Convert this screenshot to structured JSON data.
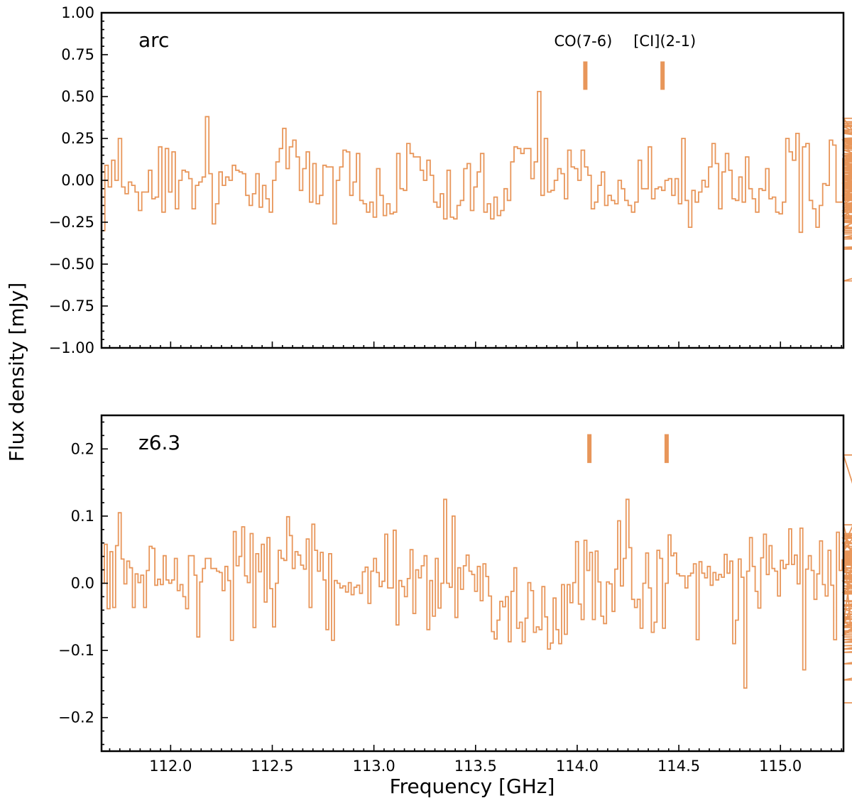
{
  "colors": {
    "spectrum": "#E8965A",
    "marker": "#E8965A",
    "axis": "#000000"
  },
  "xlabel": "Frequency [GHz]",
  "ylabel": "Flux density [mJy]",
  "chart_data": [
    {
      "type": "line",
      "panel_label": "arc",
      "xlim": [
        111.66,
        115.31
      ],
      "ylim": [
        -1.0,
        1.0
      ],
      "x_ticks": [
        112.0,
        112.5,
        113.0,
        113.5,
        114.0,
        114.5,
        115.0
      ],
      "x_tick_labels": [
        "112.0",
        "112.5",
        "113.0",
        "113.5",
        "114.0",
        "114.5",
        "115.0"
      ],
      "x_tick_labels_shown": false,
      "y_ticks": [
        -1.0,
        -0.75,
        -0.5,
        -0.25,
        0.0,
        0.25,
        0.5,
        0.75,
        1.0
      ],
      "y_tick_labels": [
        "−1.00",
        "−0.75",
        "−0.50",
        "−0.25",
        "0.00",
        "0.25",
        "0.50",
        "0.75",
        "1.00"
      ],
      "line_markers": [
        {
          "label": "CO(7-6)",
          "frequency": 114.04,
          "y_range": [
            0.54,
            0.71
          ]
        },
        {
          "label": "[CI](2-1)",
          "frequency": 114.42,
          "y_range": [
            0.54,
            0.71
          ]
        }
      ],
      "series": [
        {
          "style": "step",
          "x_start": 111.66,
          "x_step": 0.0165,
          "values": [
            -0.3,
            0.09,
            -0.04,
            0.12,
            0.0,
            0.25,
            -0.04,
            -0.08,
            -0.01,
            -0.03,
            -0.07,
            -0.18,
            -0.07,
            -0.07,
            0.06,
            -0.11,
            -0.1,
            0.2,
            -0.19,
            0.19,
            -0.07,
            0.17,
            -0.17,
            0.0,
            0.06,
            0.05,
            0.01,
            -0.17,
            -0.03,
            -0.01,
            0.02,
            0.38,
            0.04,
            -0.26,
            -0.14,
            0.05,
            -0.03,
            0.02,
            0.0,
            0.09,
            0.06,
            0.05,
            0.04,
            -0.09,
            -0.15,
            -0.08,
            0.04,
            -0.16,
            -0.03,
            -0.11,
            -0.19,
            0.0,
            0.11,
            0.19,
            0.31,
            0.07,
            0.2,
            0.24,
            0.14,
            -0.06,
            0.07,
            0.17,
            -0.13,
            0.1,
            -0.14,
            -0.09,
            0.09,
            0.08,
            0.08,
            -0.26,
            0.0,
            0.08,
            0.18,
            0.17,
            -0.09,
            -0.01,
            0.16,
            -0.12,
            -0.14,
            -0.19,
            -0.13,
            -0.22,
            0.07,
            -0.09,
            -0.21,
            -0.14,
            -0.2,
            -0.19,
            0.16,
            -0.05,
            -0.06,
            0.22,
            0.16,
            0.14,
            0.14,
            0.06,
            0.0,
            0.12,
            0.03,
            -0.13,
            -0.16,
            -0.08,
            -0.23,
            0.06,
            -0.22,
            -0.23,
            -0.15,
            -0.12,
            0.07,
            0.1,
            -0.18,
            -0.04,
            0.05,
            0.16,
            -0.19,
            -0.14,
            -0.23,
            -0.1,
            -0.21,
            -0.18,
            -0.05,
            -0.12,
            0.11,
            0.2,
            0.19,
            0.16,
            0.19,
            0.19,
            0.01,
            0.11,
            0.53,
            -0.09,
            0.25,
            -0.07,
            -0.06,
            0.0,
            0.07,
            0.04,
            -0.11,
            0.18,
            0.08,
            0.07,
            0.0,
            0.18,
            0.08,
            0.03,
            -0.17,
            -0.13,
            -0.03,
            0.05,
            -0.15,
            -0.09,
            -0.12,
            -0.14,
            0.0,
            -0.05,
            -0.12,
            -0.15,
            -0.19,
            -0.13,
            0.12,
            -0.05,
            -0.05,
            0.2,
            -0.11,
            -0.05,
            -0.04,
            -0.06,
            0.0,
            0.01,
            -0.09,
            0.01,
            -0.14,
            0.25,
            -0.12,
            -0.28,
            -0.06,
            -0.13,
            -0.07,
            0.0,
            -0.04,
            0.08,
            0.22,
            0.1,
            -0.17,
            0.05,
            0.16,
            0.06,
            -0.11,
            -0.12,
            0.02,
            -0.13,
            0.14,
            -0.05,
            -0.11,
            -0.19,
            -0.05,
            -0.06,
            0.07,
            -0.11,
            -0.1,
            -0.19,
            -0.2,
            -0.13,
            0.25,
            0.17,
            0.12,
            0.28,
            -0.31,
            0.2,
            0.22,
            -0.12,
            -0.17,
            -0.28,
            -0.15,
            -0.02,
            -0.03,
            0.24,
            0.21,
            -0.13,
            -0.13,
            0.13,
            -0.18,
            -0.16,
            -0.24,
            -0.08,
            0.23,
            0.04,
            -0.11,
            0.13,
            -0.21,
            -0.09,
            0.05,
            -0.02,
            -0.19,
            0.1,
            -0.01,
            0.01,
            -0.08,
            -0.12,
            0.37,
            -0.16,
            -0.21,
            0.02,
            -0.19,
            0.15,
            -0.25,
            -0.25,
            -0.3,
            0.28,
            0.24,
            -0.1,
            -0.02,
            0.08,
            0.01,
            -0.14,
            0.21,
            0.18,
            -0.05,
            0.21,
            -0.02,
            -0.1,
            0.05,
            -0.28,
            0.12,
            0.15,
            -0.16,
            -0.05,
            0.13,
            0.2,
            0.06,
            0.07,
            0.25,
            0.29,
            -0.04,
            0.22,
            0.25,
            0.32,
            -0.18,
            -0.11,
            0.34,
            0.35,
            0.3,
            -0.02,
            0.07,
            -0.04,
            -0.07,
            0.01,
            -0.02,
            -0.15,
            -0.14,
            0.03,
            -0.09,
            -0.14,
            -0.18,
            0.15,
            0.11,
            -0.28,
            -0.34,
            -0.02,
            0.11,
            0.12,
            0.07,
            -0.11,
            -0.15,
            0.01,
            -0.06,
            -0.05,
            -0.11,
            -0.14,
            0.0,
            -0.18,
            0.13,
            0.25,
            -0.28,
            -0.41,
            -0.17,
            -0.12,
            0.15,
            -0.1,
            -0.04,
            0.12,
            -0.1,
            -0.22,
            -0.01,
            -0.25,
            0.29,
            0.25,
            0.12,
            0.33,
            -0.09,
            -0.01,
            -0.23,
            0.12,
            0.12,
            -0.06,
            -0.23,
            0.12,
            0.06,
            -0.06,
            0.02,
            0.28,
            -0.04,
            -0.03,
            0.2,
            -0.02,
            0.21,
            0.23,
            -0.08,
            -0.07,
            0.02,
            0.19,
            0.16,
            -0.06,
            -0.22,
            -0.11,
            -0.6,
            0.13,
            0.1,
            -0.11,
            0.01,
            0.33,
            0.14,
            0.22,
            0.05,
            -0.1,
            -0.25,
            0.09,
            -0.04,
            -0.25,
            -0.16,
            0.14,
            0.24,
            -0.16,
            -0.32,
            -0.28,
            -0.31,
            -0.29,
            -0.19,
            -0.35,
            -0.15,
            -0.41,
            -0.14,
            -0.4,
            -0.23,
            -0.35
          ]
        }
      ]
    },
    {
      "type": "line",
      "panel_label": "z6.3",
      "xlim": [
        111.66,
        115.31
      ],
      "ylim": [
        -0.25,
        0.25
      ],
      "x_ticks": [
        112.0,
        112.5,
        113.0,
        113.5,
        114.0,
        114.5,
        115.0
      ],
      "x_tick_labels": [
        "112.0",
        "112.5",
        "113.0",
        "113.5",
        "114.0",
        "114.5",
        "115.0"
      ],
      "x_tick_labels_shown": true,
      "y_ticks": [
        -0.2,
        -0.1,
        0.0,
        0.1,
        0.2
      ],
      "y_tick_labels": [
        "−0.2",
        "−0.1",
        "0.0",
        "0.1",
        "0.2"
      ],
      "line_markers": [
        {
          "label": "",
          "frequency": 114.06,
          "y_range": [
            0.179,
            0.222
          ]
        },
        {
          "label": "",
          "frequency": 114.44,
          "y_range": [
            0.179,
            0.222
          ]
        }
      ],
      "series": [
        {
          "style": "step",
          "x_start": 111.66,
          "x_step": 0.0138,
          "values": [
            0.0,
            0.058,
            -0.038,
            0.047,
            -0.036,
            0.056,
            0.105,
            0.036,
            -0.001,
            0.033,
            0.023,
            -0.036,
            0.014,
            0.001,
            0.012,
            -0.036,
            0.019,
            0.055,
            0.052,
            -0.003,
            0.006,
            -0.002,
            0.041,
            0.005,
            0.0,
            0.005,
            0.037,
            -0.011,
            -0.002,
            -0.02,
            -0.038,
            0.041,
            0.041,
            0.012,
            -0.08,
            0.002,
            0.022,
            0.037,
            0.037,
            0.022,
            0.022,
            0.018,
            0.016,
            -0.011,
            0.025,
            0.004,
            -0.085,
            0.077,
            0.026,
            0.04,
            0.084,
            0.011,
            0.001,
            0.074,
            -0.066,
            0.044,
            0.017,
            0.058,
            -0.028,
            0.068,
            -0.008,
            -0.065,
            0.0,
            0.049,
            0.037,
            0.034,
            0.099,
            0.071,
            0.022,
            0.047,
            0.042,
            0.027,
            0.021,
            0.066,
            -0.036,
            0.088,
            0.049,
            0.018,
            0.046,
            0.005,
            -0.069,
            0.044,
            -0.085,
            0.004,
            0.0,
            -0.007,
            -0.004,
            -0.013,
            0.001,
            -0.017,
            -0.006,
            -0.003,
            -0.015,
            0.017,
            0.024,
            -0.03,
            0.018,
            0.037,
            0.016,
            -0.005,
            0.003,
            0.073,
            -0.007,
            -0.007,
            0.079,
            -0.062,
            0.004,
            -0.005,
            -0.02,
            0.007,
            0.05,
            -0.045,
            0.02,
            0.008,
            0.026,
            0.041,
            -0.069,
            0.004,
            -0.049,
            0.037,
            -0.037,
            0.0,
            0.125,
            0.0,
            -0.006,
            0.1,
            -0.051,
            0.023,
            -0.009,
            0.026,
            0.042,
            0.018,
            0.013,
            -0.012,
            0.025,
            -0.026,
            0.029,
            0.01,
            -0.019,
            -0.072,
            -0.083,
            -0.055,
            -0.027,
            -0.035,
            -0.02,
            -0.087,
            -0.012,
            0.023,
            -0.067,
            -0.058,
            -0.087,
            -0.052,
            0.001,
            -0.011,
            -0.073,
            -0.065,
            -0.069,
            -0.005,
            -0.05,
            -0.098,
            -0.089,
            -0.022,
            -0.069,
            -0.09,
            -0.002,
            -0.076,
            -0.002,
            -0.029,
            0.001,
            0.062,
            -0.031,
            -0.054,
            0.064,
            0.019,
            0.046,
            -0.054,
            0.048,
            0.002,
            -0.049,
            -0.06,
            0.002,
            -0.001,
            -0.042,
            0.021,
            0.093,
            -0.004,
            0.037,
            0.125,
            0.053,
            -0.024,
            -0.036,
            -0.024,
            -0.067,
            0.0,
            0.045,
            -0.007,
            -0.073,
            -0.058,
            0.049,
            0.037,
            -0.067,
            0.0,
            0.072,
            0.041,
            0.045,
            0.014,
            0.011,
            0.011,
            -0.007,
            0.011,
            0.015,
            0.029,
            -0.084,
            0.032,
            0.015,
            0.008,
            0.025,
            -0.003,
            0.016,
            0.005,
            0.013,
            0.009,
            0.043,
            0.015,
            0.033,
            -0.09,
            -0.055,
            0.036,
            0.009,
            -0.156,
            0.018,
            0.068,
            0.025,
            -0.012,
            -0.037,
            0.038,
            0.073,
            0.013,
            0.056,
            0.022,
            0.018,
            -0.019,
            0.034,
            0.022,
            0.028,
            0.081,
            0.028,
            0.042,
            -0.001,
            0.082,
            -0.129,
            0.021,
            0.041,
            0.019,
            -0.024,
            0.014,
            0.063,
            -0.002,
            -0.019,
            0.049,
            -0.003,
            -0.084,
            0.076,
            0.019,
            0.035,
            0.055,
            0.067,
            -0.063,
            0.048,
            0.074,
            0.023,
            0.059,
            0.034,
            0.087,
            -0.063,
            0.044,
            0.03,
            0.071,
            0.055,
            0.191,
            -0.013,
            0.045,
            0.067,
            0.022,
            -0.008,
            0.01,
            0.006,
            0.016,
            0.027,
            0.03,
            0.037,
            0.046,
            0.072,
            0.04,
            0.008,
            0.06,
            -0.053,
            0.019,
            -0.066,
            0.009,
            -0.038,
            -0.098,
            -0.071,
            -0.077,
            0.031,
            0.003,
            -0.103,
            -0.088,
            -0.065,
            0.037,
            -0.012,
            0.002,
            -0.074,
            0.034,
            0.043,
            -0.033,
            0.006,
            0.032,
            0.048,
            -0.066,
            0.043,
            -0.008,
            -0.016,
            0.003,
            0.012,
            0.001,
            0.012,
            -0.013,
            -0.034,
            0.038,
            -0.014,
            0.028,
            -0.004,
            -0.054,
            -0.026,
            -0.063,
            -0.144,
            -0.084,
            -0.093,
            -0.08,
            -0.084,
            -0.05,
            -0.12,
            -0.071,
            -0.046,
            -0.032,
            -0.098,
            -0.058,
            -0.178,
            -0.178
          ]
        }
      ]
    }
  ]
}
